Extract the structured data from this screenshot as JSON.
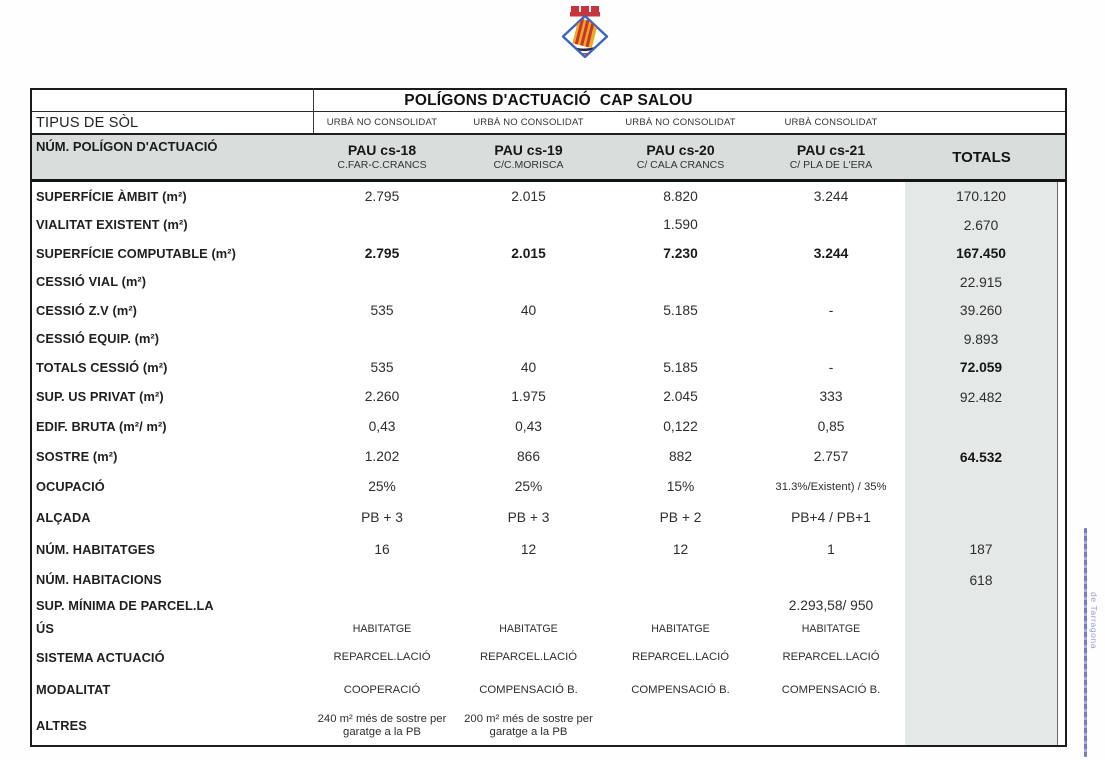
{
  "logo": {
    "name": "Escut de Salou",
    "colors": {
      "blue": "#3a67be",
      "red": "#c93334",
      "yellow": "#eeaa1d",
      "navy": "#272a52"
    }
  },
  "table": {
    "title": "POLÍGONS D'ACTUACIÓ  CAP SALOU",
    "soil_row": {
      "label": "TIPUS DE SÒL",
      "values": [
        "URBÀ NO CONSOLIDAT",
        "URBÀ NO CONSOLIDAT",
        "URBÀ NO CONSOLIDAT",
        "URBÀ CONSOLIDAT"
      ]
    },
    "header_row": {
      "label": "NÚM. POLÍGON D'ACTUACIÓ",
      "columns": [
        {
          "name": "PAU cs-18",
          "sub": "C.FAR-C.CRANCS"
        },
        {
          "name": "PAU cs-19",
          "sub": "C/C.MORISCA"
        },
        {
          "name": "PAU cs-20",
          "sub": "C/ CALA CRANCS"
        },
        {
          "name": "PAU cs-21",
          "sub": "C/ PLA DE L'ERA"
        }
      ],
      "totals_label": "TOTALS"
    },
    "rows": [
      {
        "label": "SUPERFÍCIE ÀMBIT (m²)",
        "values": [
          "2.795",
          "2.015",
          "8.820",
          "3.244"
        ],
        "total": "170.120"
      },
      {
        "label": "VIALITAT EXISTENT (m²)",
        "values": [
          "",
          "",
          "1.590",
          ""
        ],
        "total": "2.670"
      },
      {
        "label": "SUPERFÍCIE COMPUTABLE (m²)",
        "values": [
          "2.795",
          "2.015",
          "7.230",
          "3.244"
        ],
        "total": "167.450",
        "bold": true,
        "total_bold": true
      },
      {
        "label": "CESSIÓ VIAL (m²)",
        "values": [
          "",
          "",
          "",
          ""
        ],
        "total": "22.915"
      },
      {
        "label": "CESSIÓ Z.V (m²)",
        "values": [
          "535",
          "40",
          "5.185",
          "-"
        ],
        "total": "39.260"
      },
      {
        "label": "CESSIÓ EQUIP. (m²)",
        "values": [
          "",
          "",
          "",
          ""
        ],
        "total": "9.893"
      },
      {
        "label": "TOTALS CESSIÓ (m²)",
        "values": [
          "535",
          "40",
          "5.185",
          "-"
        ],
        "total": "72.059",
        "total_bold": true
      },
      {
        "label": "SUP. US PRIVAT (m²)",
        "values": [
          "2.260",
          "1.975",
          "2.045",
          "333"
        ],
        "total": "92.482"
      },
      {
        "label": "EDIF. BRUTA (m²/ m²)",
        "values": [
          "0,43",
          "0,43",
          "0,122",
          "0,85"
        ],
        "total": ""
      },
      {
        "label": "SOSTRE (m²)",
        "values": [
          "1.202",
          "866",
          "882",
          "2.757"
        ],
        "total": "64.532",
        "total_bold": true
      },
      {
        "label": "OCUPACIÓ",
        "values": [
          "25%",
          "25%",
          "15%",
          "31.3%/Existent) / 35%"
        ],
        "total": ""
      },
      {
        "label": "ALÇADA",
        "values": [
          "PB + 3",
          "PB + 3",
          "PB + 2",
          "PB+4 / PB+1"
        ],
        "total": ""
      },
      {
        "label": "NÚM. HABITATGES",
        "values": [
          "16",
          "12",
          "12",
          "1"
        ],
        "total": "187"
      },
      {
        "label": "NÚM. HABITACIONS",
        "values": [
          "",
          "",
          "",
          ""
        ],
        "total": "618"
      },
      {
        "label": "SUP. MÍNIMA DE PARCEL.LA",
        "values": [
          "",
          "",
          "",
          "2.293,58/ 950"
        ],
        "total": ""
      },
      {
        "label": "ÚS",
        "values": [
          "HABITATGE",
          "HABITATGE",
          "HABITATGE",
          "HABITATGE"
        ],
        "total": ""
      },
      {
        "label": "SISTEMA ACTUACIÓ",
        "values": [
          "REPARCEL.LACIÓ",
          "REPARCEL.LACIÓ",
          "REPARCEL.LACIÓ",
          "REPARCEL.LACIÓ"
        ],
        "total": ""
      },
      {
        "label": "MODALITAT",
        "values": [
          "COOPERACIÓ",
          "COMPENSACIÓ B.",
          "COMPENSACIÓ B.",
          "COMPENSACIÓ B."
        ],
        "total": ""
      },
      {
        "label": "ALTRES",
        "values": [
          "240 m² més de sostre per garatge a la PB",
          "200 m² més de sostre per garatge a la PB",
          "",
          ""
        ],
        "total": ""
      }
    ]
  },
  "stamp": {
    "text": "de Tarragona",
    "color": "#989dc8"
  }
}
